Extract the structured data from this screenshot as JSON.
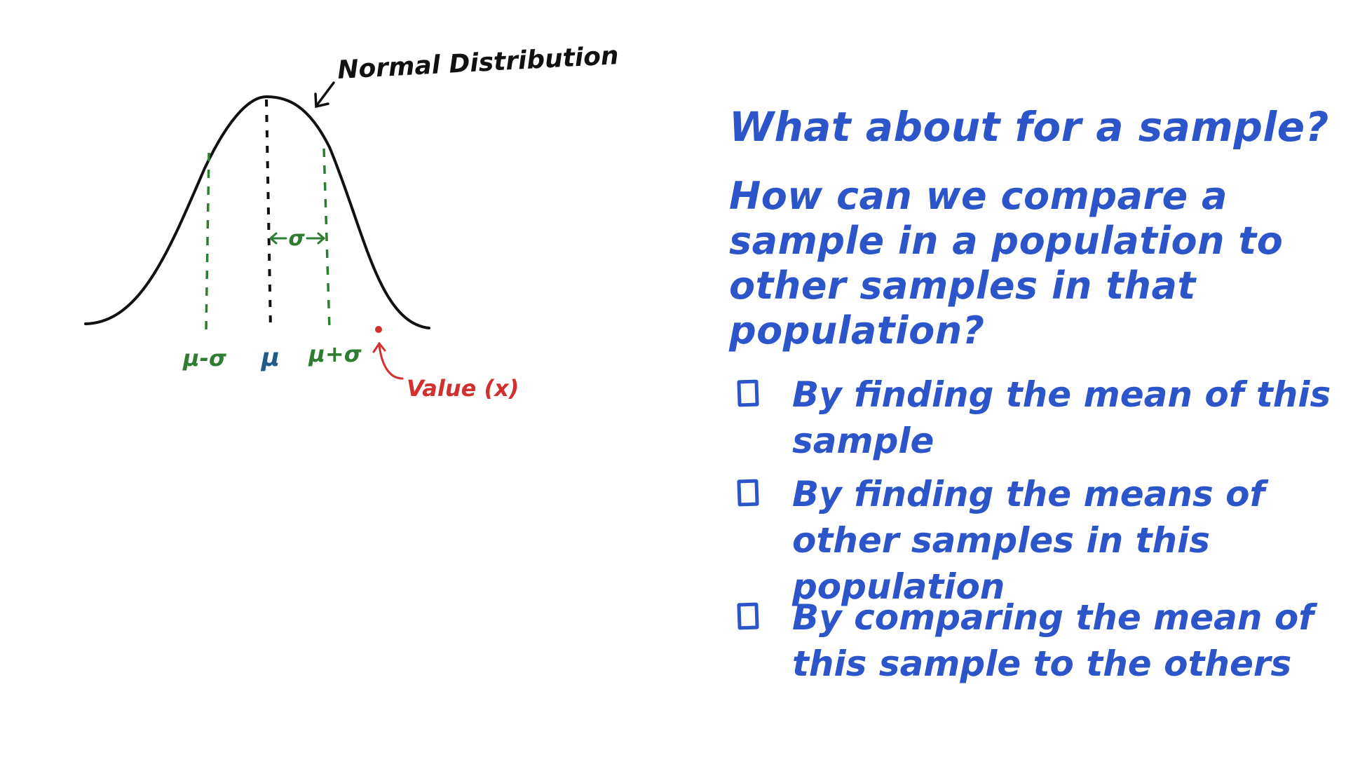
{
  "diagram": {
    "title": "Normal Distribution",
    "labels": {
      "mu_minus_sigma": "μ-σ",
      "mu": "μ",
      "mu_plus_sigma": "μ+σ",
      "sigma": "σ",
      "value": "Value (x)"
    },
    "colors": {
      "curve": "#111111",
      "sigma_lines": "#2e7d32",
      "mu_label": "#1f5c8a",
      "value": "#d32f2f"
    }
  },
  "question": {
    "heading": "What about for a sample?",
    "prompt": "How can we compare a sample in a population to other samples in that population?",
    "choices": [
      {
        "label": "By finding the mean of this sample",
        "checked": false
      },
      {
        "label": "By finding the means of other samples in this population",
        "checked": false
      },
      {
        "label": "By comparing the mean of this sample to the others",
        "checked": false
      }
    ],
    "color": "#2b55c9"
  }
}
